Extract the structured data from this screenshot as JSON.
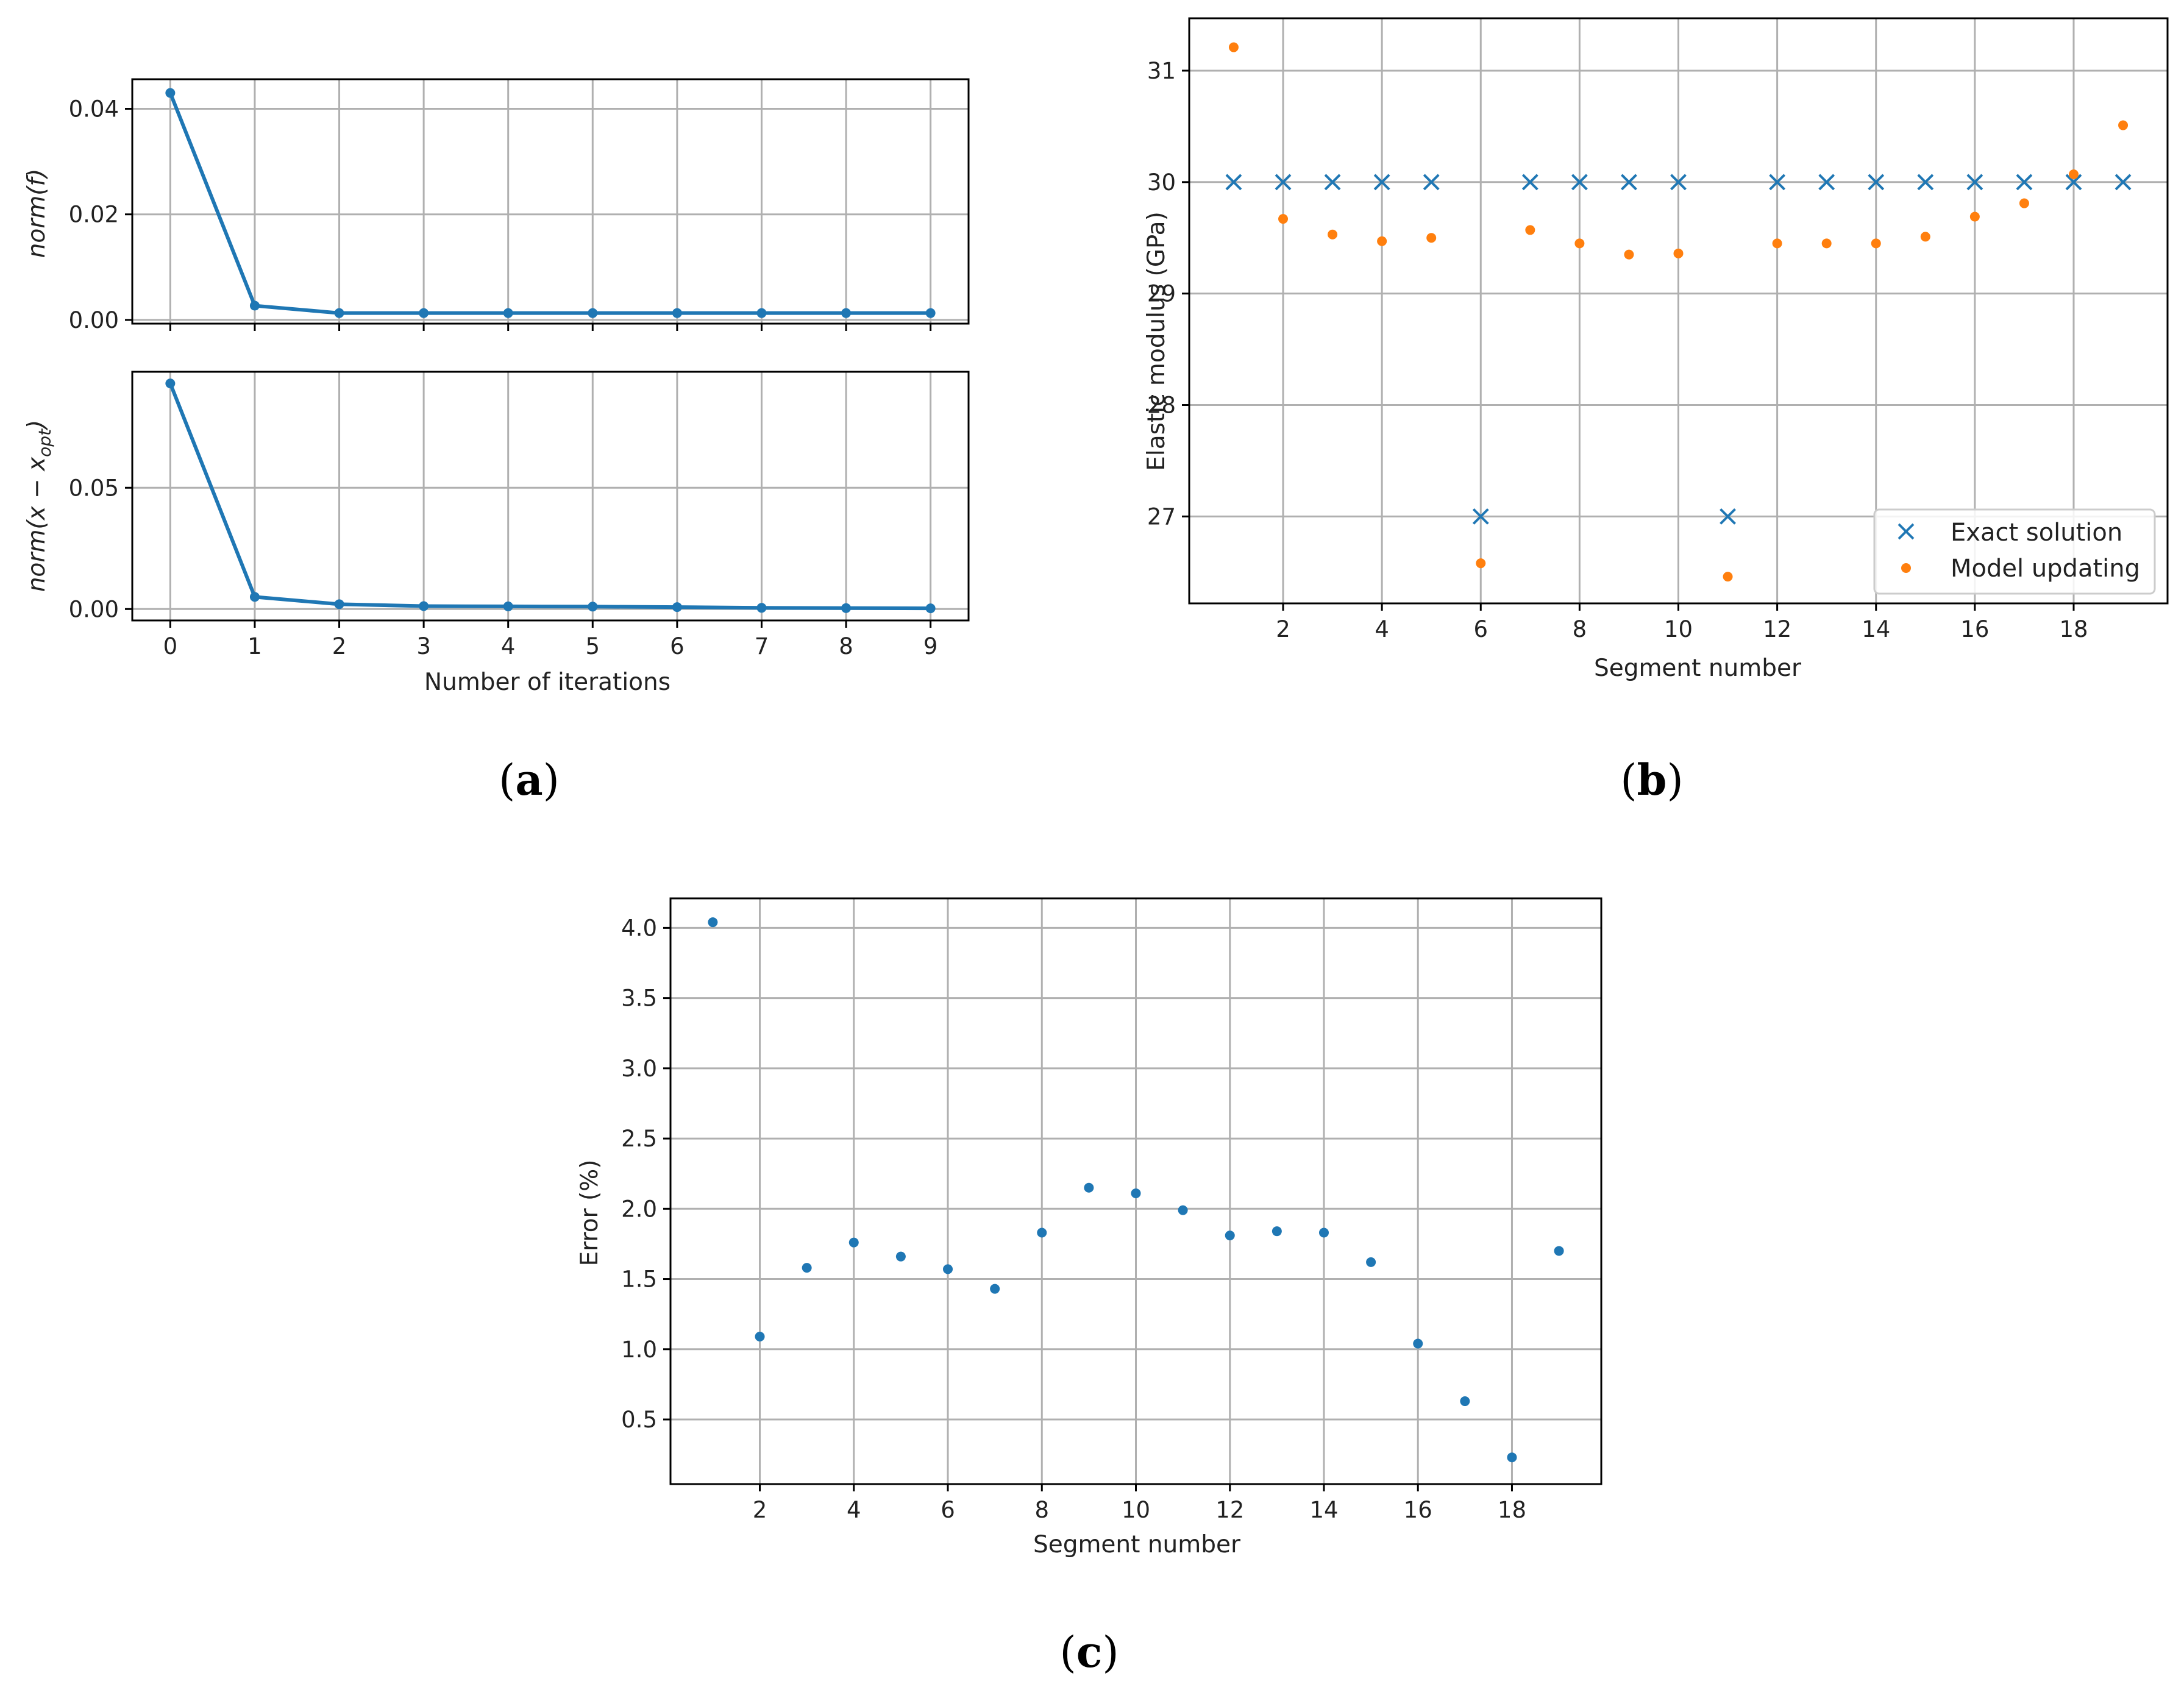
{
  "colors": {
    "blue": "#1f77b4",
    "orange": "#ff7f0e",
    "grid": "#b0b0b0"
  },
  "panel_labels": {
    "a": {
      "open": "(",
      "letter": "a",
      "close": ")"
    },
    "b": {
      "open": "(",
      "letter": "b",
      "close": ")"
    },
    "c": {
      "open": "(",
      "letter": "c",
      "close": ")"
    }
  },
  "chart_data": [
    {
      "id": "a-top",
      "type": "line",
      "ylabel": "norm(f)",
      "xlabel": "",
      "x": [
        0,
        1,
        2,
        3,
        4,
        5,
        6,
        7,
        8,
        9
      ],
      "series": [
        {
          "name": "norm(f)",
          "values": [
            0.043,
            0.0027,
            0.0013,
            0.0013,
            0.0013,
            0.0013,
            0.0013,
            0.0013,
            0.0013,
            0.0013
          ]
        }
      ],
      "xlim": [
        -0.45,
        9.45
      ],
      "ylim": [
        -0.0007,
        0.0456
      ],
      "xticks": [
        0,
        1,
        2,
        3,
        4,
        5,
        6,
        7,
        8,
        9
      ],
      "show_xtick_labels": false,
      "yticks": [
        0.0,
        0.02,
        0.04
      ],
      "yticklabels": [
        "0.00",
        "0.02",
        "0.04"
      ],
      "grid": true
    },
    {
      "id": "a-bottom",
      "type": "line",
      "ylabel_main": "norm(x − x",
      "ylabel_sub": "opt",
      "ylabel_close": ")",
      "xlabel": "Number of iterations",
      "x": [
        0,
        1,
        2,
        3,
        4,
        5,
        6,
        7,
        8,
        9
      ],
      "series": [
        {
          "name": "norm(x − x_opt)",
          "values": [
            0.093,
            0.005,
            0.002,
            0.0012,
            0.0011,
            0.001,
            0.0008,
            0.0005,
            0.0004,
            0.0003
          ]
        }
      ],
      "xlim": [
        -0.45,
        9.45
      ],
      "ylim": [
        -0.0047,
        0.0978
      ],
      "xticks": [
        0,
        1,
        2,
        3,
        4,
        5,
        6,
        7,
        8,
        9
      ],
      "xticklabels": [
        "0",
        "1",
        "2",
        "3",
        "4",
        "5",
        "6",
        "7",
        "8",
        "9"
      ],
      "yticks": [
        0.0,
        0.05
      ],
      "yticklabels": [
        "0.00",
        "0.05"
      ],
      "grid": true
    },
    {
      "id": "b",
      "type": "scatter",
      "xlabel": "Segment number",
      "ylabel": "Elastic modulus (GPa)",
      "x": [
        1,
        2,
        3,
        4,
        5,
        6,
        7,
        8,
        9,
        10,
        11,
        12,
        13,
        14,
        15,
        16,
        17,
        18,
        19
      ],
      "series": [
        {
          "name": "Exact solution",
          "marker": "x",
          "values": [
            30,
            30,
            30,
            30,
            30,
            27,
            30,
            30,
            30,
            30,
            27,
            30,
            30,
            30,
            30,
            30,
            30,
            30,
            30
          ]
        },
        {
          "name": "Model updating",
          "marker": "dot",
          "values": [
            31.21,
            29.67,
            29.53,
            29.47,
            29.5,
            26.58,
            29.57,
            29.45,
            29.35,
            29.36,
            26.46,
            29.45,
            29.45,
            29.45,
            29.51,
            29.69,
            29.81,
            30.07,
            30.51
          ]
        }
      ],
      "xlim": [
        0.1,
        19.9
      ],
      "ylim": [
        26.22,
        31.47
      ],
      "xticks": [
        2,
        4,
        6,
        8,
        10,
        12,
        14,
        16,
        18
      ],
      "xticklabels": [
        "2",
        "4",
        "6",
        "8",
        "10",
        "12",
        "14",
        "16",
        "18"
      ],
      "yticks": [
        27,
        28,
        29,
        30,
        31
      ],
      "yticklabels": [
        "27",
        "28",
        "29",
        "30",
        "31"
      ],
      "legend": {
        "placement": "lower-right",
        "entries": [
          "Exact solution",
          "Model updating"
        ]
      },
      "grid": true
    },
    {
      "id": "c",
      "type": "scatter",
      "xlabel": "Segment number",
      "ylabel": "Error (%)",
      "x": [
        1,
        2,
        3,
        4,
        5,
        6,
        7,
        8,
        9,
        10,
        11,
        12,
        13,
        14,
        15,
        16,
        17,
        18,
        19
      ],
      "series": [
        {
          "name": "Error",
          "marker": "dot",
          "values": [
            4.04,
            1.09,
            1.58,
            1.76,
            1.66,
            1.57,
            1.43,
            1.83,
            2.15,
            2.11,
            1.99,
            1.81,
            1.84,
            1.83,
            1.62,
            1.04,
            0.63,
            0.23,
            1.7
          ]
        }
      ],
      "xlim": [
        0.1,
        19.9
      ],
      "ylim": [
        0.04,
        4.21
      ],
      "xticks": [
        2,
        4,
        6,
        8,
        10,
        12,
        14,
        16,
        18
      ],
      "xticklabels": [
        "2",
        "4",
        "6",
        "8",
        "10",
        "12",
        "14",
        "16",
        "18"
      ],
      "yticks": [
        0.5,
        1.0,
        1.5,
        2.0,
        2.5,
        3.0,
        3.5,
        4.0
      ],
      "yticklabels": [
        "0.5",
        "1.0",
        "1.5",
        "2.0",
        "2.5",
        "3.0",
        "3.5",
        "4.0"
      ],
      "grid": true
    }
  ]
}
